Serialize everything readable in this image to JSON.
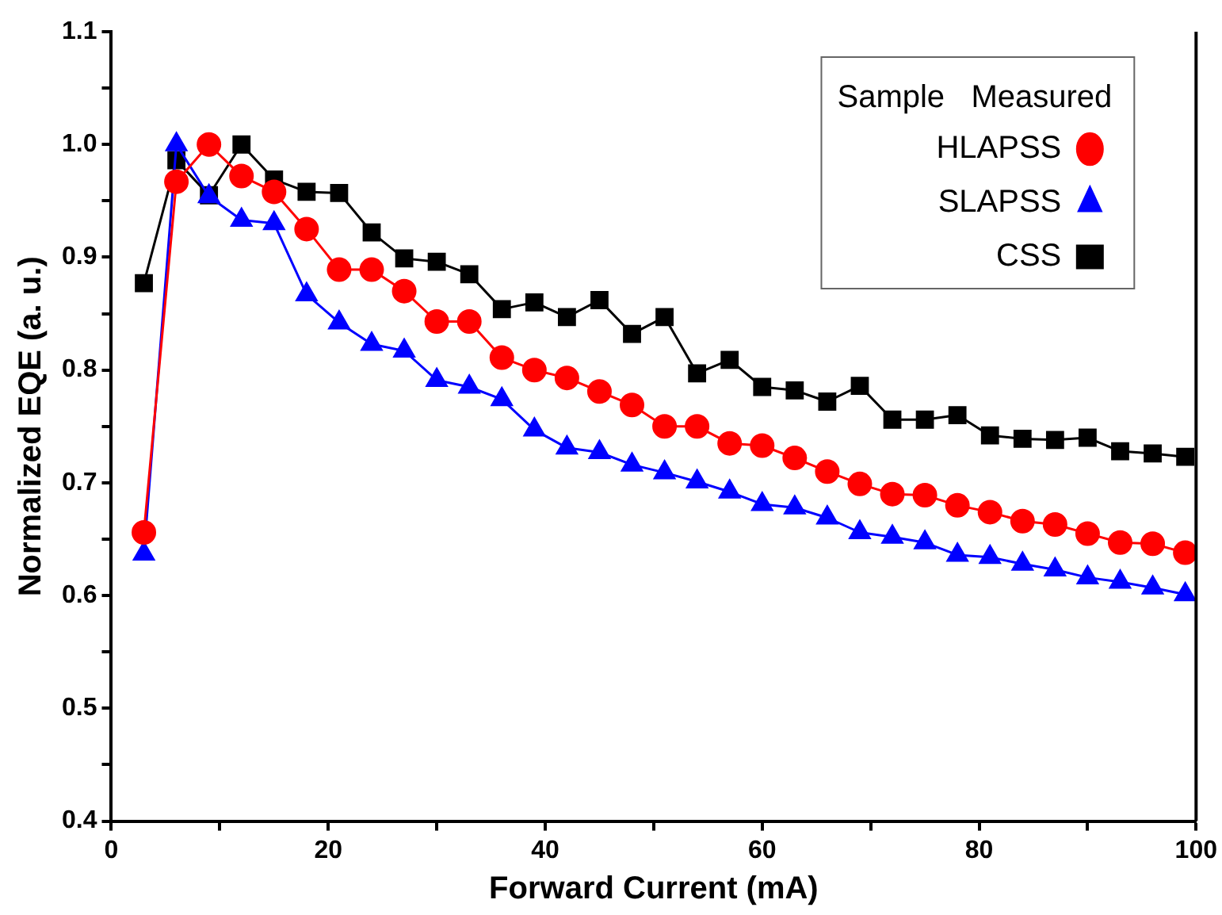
{
  "chart_data": {
    "type": "line",
    "xlabel": "Forward Current (mA)",
    "ylabel": "Normalized EQE (a. u.)",
    "legend_title": "Sample   Measured",
    "legend": "top right",
    "grid": false,
    "x": [
      3,
      6,
      9,
      12,
      15,
      18,
      21,
      24,
      27,
      30,
      33,
      36,
      39,
      42,
      45,
      48,
      51,
      54,
      57,
      60,
      63,
      66,
      69,
      72,
      75,
      78,
      81,
      84,
      87,
      90,
      93,
      96,
      99
    ],
    "xlim": [
      0,
      100
    ],
    "xticks": [
      0,
      {
        "value": 10,
        "label": null
      },
      20,
      {
        "value": 30,
        "label": null
      },
      40,
      {
        "value": 50,
        "label": null
      },
      60,
      {
        "value": 70,
        "label": null
      },
      80,
      {
        "value": 90,
        "label": null
      },
      100
    ],
    "ylim": [
      0.4,
      1.1
    ],
    "yticks": [
      0.4,
      {
        "value": 0.45,
        "label": null
      },
      0.5,
      {
        "value": 0.55,
        "label": null
      },
      0.6,
      {
        "value": 0.65,
        "label": null
      },
      0.7,
      {
        "value": 0.75,
        "label": null
      },
      0.8,
      {
        "value": 0.85,
        "label": null
      },
      0.9,
      {
        "value": 0.95,
        "label": null
      },
      {
        "value": 1,
        "label": "1.0"
      },
      {
        "value": 1.05,
        "label": null
      },
      1.1
    ],
    "series": [
      {
        "name": "HLAPSS",
        "color": "#ff0000",
        "marker": "circle",
        "values": [
          0.656,
          0.967,
          1.0,
          0.972,
          0.958,
          0.925,
          0.889,
          0.889,
          0.87,
          0.843,
          0.843,
          0.811,
          0.8,
          0.793,
          0.781,
          0.769,
          0.75,
          0.75,
          0.735,
          0.733,
          0.722,
          0.71,
          0.699,
          0.69,
          0.689,
          0.68,
          0.674,
          0.666,
          0.663,
          0.655,
          0.647,
          0.646,
          0.638
        ]
      },
      {
        "name": "SLAPSS",
        "color": "#0000ff",
        "marker": "triangle",
        "values": [
          0.637,
          1.0,
          0.954,
          0.933,
          0.93,
          0.867,
          0.842,
          0.823,
          0.817,
          0.791,
          0.785,
          0.774,
          0.747,
          0.731,
          0.727,
          0.716,
          0.709,
          0.701,
          0.692,
          0.681,
          0.678,
          0.669,
          0.656,
          0.652,
          0.647,
          0.636,
          0.634,
          0.628,
          0.623,
          0.616,
          0.612,
          0.607,
          0.601
        ]
      },
      {
        "name": "CSS",
        "color": "#000000",
        "marker": "square",
        "values": [
          0.877,
          0.986,
          0.955,
          1.0,
          0.969,
          0.958,
          0.957,
          0.922,
          0.899,
          0.896,
          0.885,
          0.854,
          0.86,
          0.847,
          0.862,
          0.832,
          0.847,
          0.797,
          0.809,
          0.785,
          0.782,
          0.772,
          0.786,
          0.756,
          0.756,
          0.76,
          0.742,
          0.739,
          0.738,
          0.74,
          0.728,
          0.726,
          0.723
        ]
      }
    ]
  }
}
